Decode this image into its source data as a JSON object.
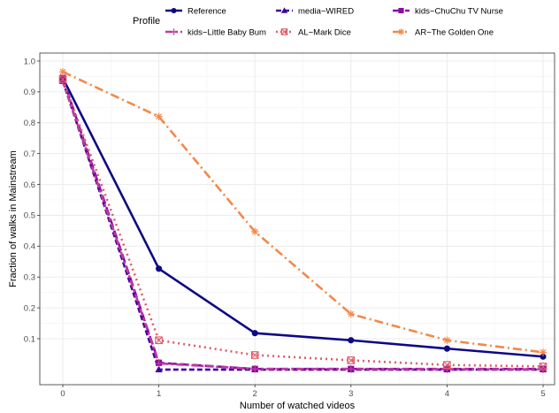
{
  "chart_data": {
    "type": "line",
    "title": "",
    "xlabel": "Number of watched videos",
    "ylabel": "Fraction of walks in Mainstream",
    "x": [
      0,
      1,
      2,
      3,
      4,
      5
    ],
    "xlim": [
      -0.25,
      5.1
    ],
    "ylim": [
      0.0,
      1.0
    ],
    "x_ticks": [
      "0",
      "1",
      "2",
      "3",
      "4",
      "5"
    ],
    "y_ticks": [
      "0.1",
      "0.2",
      "0.3",
      "0.4",
      "0.5",
      "0.6",
      "0.7",
      "0.8",
      "0.9",
      "1.0"
    ],
    "y_tick_values": [
      0.1,
      0.2,
      0.3,
      0.4,
      0.5,
      0.6,
      0.7,
      0.8,
      0.9,
      1.0
    ],
    "grid": true,
    "legend": {
      "title": "Profile",
      "placement": "top"
    },
    "series": [
      {
        "name": "Reference",
        "values": [
          0.945,
          0.327,
          0.118,
          0.095,
          0.068,
          0.042
        ],
        "color": "#0d0887",
        "dash": "solid",
        "marker": "circle"
      },
      {
        "name": "media−WIRED",
        "values": [
          0.935,
          0.0,
          0.0,
          0.0,
          0.0,
          0.0
        ],
        "color": "#41049d",
        "dash": "dashed",
        "marker": "triangle"
      },
      {
        "name": "kids−ChuChu TV Nurse",
        "values": [
          0.945,
          0.022,
          0.002,
          0.002,
          0.002,
          0.002
        ],
        "color": "#8b0aa5",
        "dash": "longdash",
        "marker": "square"
      },
      {
        "name": "kids−Little Baby Bum",
        "values": [
          0.935,
          0.02,
          0.002,
          0.002,
          0.001,
          0.001
        ],
        "color": "#c0399f",
        "dash": "twodash",
        "marker": "plus"
      },
      {
        "name": "AL−Mark Dice",
        "values": [
          0.94,
          0.095,
          0.047,
          0.03,
          0.015,
          0.01
        ],
        "color": "#db5c68",
        "dash": "dotted",
        "marker": "squarex"
      },
      {
        "name": "AR−The Golden One",
        "values": [
          0.965,
          0.82,
          0.447,
          0.18,
          0.095,
          0.056
        ],
        "color": "#f48849",
        "dash": "dotdash",
        "marker": "asterisk"
      }
    ]
  }
}
